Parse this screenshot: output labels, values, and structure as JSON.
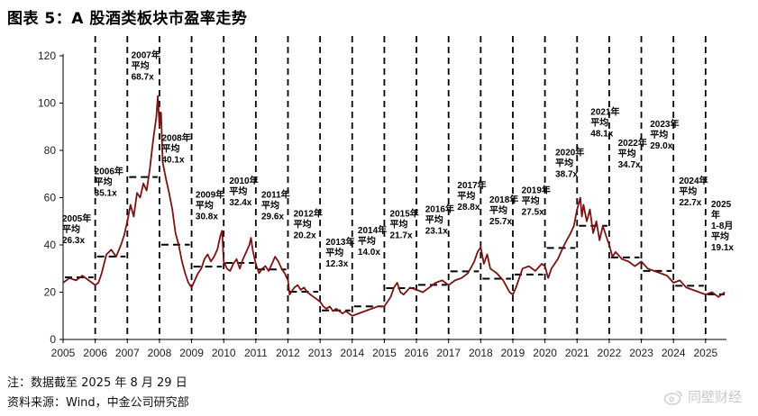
{
  "figure_title": "图表 5：A 股酒类板块市盈率走势",
  "footnote": "注：数据截至 2025 年 8 月 29 日",
  "source": "资料来源：Wind，中金公司研究部",
  "watermark": "同壁财经",
  "colors": {
    "line": "#7a1414",
    "dashed": "#000000",
    "axis": "#000000",
    "tick_text": "#222222"
  },
  "chart_data": {
    "type": "line",
    "ylim": [
      0,
      120
    ],
    "xlim": [
      2005,
      2025.65
    ],
    "yticks": [
      0,
      20,
      40,
      60,
      80,
      100,
      120
    ],
    "xticks": [
      "2005",
      "2006",
      "2007",
      "2008",
      "2009",
      "2010",
      "2011",
      "2012",
      "2013",
      "2014",
      "2015",
      "2016",
      "2017",
      "2018",
      "2019",
      "2020",
      "2021",
      "2022",
      "2023",
      "2024",
      "2025"
    ],
    "series": [
      {
        "points": [
          [
            2005.0,
            24
          ],
          [
            2005.2,
            26
          ],
          [
            2005.4,
            25
          ],
          [
            2005.6,
            27
          ],
          [
            2005.8,
            25
          ],
          [
            2006.0,
            23
          ],
          [
            2006.1,
            24
          ],
          [
            2006.2,
            28
          ],
          [
            2006.35,
            36
          ],
          [
            2006.5,
            38
          ],
          [
            2006.65,
            35
          ],
          [
            2006.8,
            40
          ],
          [
            2006.9,
            44
          ],
          [
            2007.0,
            50
          ],
          [
            2007.1,
            57
          ],
          [
            2007.2,
            52
          ],
          [
            2007.3,
            62
          ],
          [
            2007.4,
            60
          ],
          [
            2007.5,
            66
          ],
          [
            2007.6,
            63
          ],
          [
            2007.7,
            72
          ],
          [
            2007.8,
            84
          ],
          [
            2007.9,
            94
          ],
          [
            2007.95,
            103
          ],
          [
            2008.0,
            90
          ],
          [
            2008.05,
            96
          ],
          [
            2008.1,
            75
          ],
          [
            2008.2,
            68
          ],
          [
            2008.3,
            62
          ],
          [
            2008.4,
            55
          ],
          [
            2008.5,
            45
          ],
          [
            2008.6,
            40
          ],
          [
            2008.7,
            33
          ],
          [
            2008.8,
            28
          ],
          [
            2008.9,
            24
          ],
          [
            2009.0,
            22
          ],
          [
            2009.1,
            25
          ],
          [
            2009.2,
            28
          ],
          [
            2009.3,
            30
          ],
          [
            2009.4,
            34
          ],
          [
            2009.5,
            36
          ],
          [
            2009.6,
            33
          ],
          [
            2009.7,
            35
          ],
          [
            2009.8,
            38
          ],
          [
            2009.9,
            44
          ],
          [
            2009.95,
            46
          ],
          [
            2010.0,
            33
          ],
          [
            2010.1,
            30
          ],
          [
            2010.2,
            29
          ],
          [
            2010.3,
            32
          ],
          [
            2010.4,
            34
          ],
          [
            2010.5,
            30
          ],
          [
            2010.6,
            34
          ],
          [
            2010.7,
            37
          ],
          [
            2010.8,
            40
          ],
          [
            2010.85,
            43
          ],
          [
            2010.9,
            38
          ],
          [
            2011.0,
            32
          ],
          [
            2011.1,
            28
          ],
          [
            2011.2,
            30
          ],
          [
            2011.3,
            31
          ],
          [
            2011.4,
            29
          ],
          [
            2011.5,
            32
          ],
          [
            2011.6,
            35
          ],
          [
            2011.7,
            33
          ],
          [
            2011.8,
            30
          ],
          [
            2011.9,
            28
          ],
          [
            2012.0,
            25
          ],
          [
            2012.05,
            19
          ],
          [
            2012.1,
            20
          ],
          [
            2012.2,
            22
          ],
          [
            2012.3,
            23
          ],
          [
            2012.4,
            21
          ],
          [
            2012.5,
            22
          ],
          [
            2012.6,
            20
          ],
          [
            2012.7,
            19
          ],
          [
            2012.8,
            18
          ],
          [
            2012.9,
            17
          ],
          [
            2013.0,
            16
          ],
          [
            2013.1,
            14
          ],
          [
            2013.2,
            13
          ],
          [
            2013.3,
            14
          ],
          [
            2013.4,
            12
          ],
          [
            2013.5,
            13
          ],
          [
            2013.6,
            12
          ],
          [
            2013.7,
            11
          ],
          [
            2013.8,
            12
          ],
          [
            2013.9,
            11
          ],
          [
            2014.0,
            10
          ],
          [
            2014.2,
            11
          ],
          [
            2014.4,
            12
          ],
          [
            2014.6,
            13
          ],
          [
            2014.8,
            14
          ],
          [
            2015.0,
            14
          ],
          [
            2015.2,
            18
          ],
          [
            2015.3,
            22
          ],
          [
            2015.4,
            24
          ],
          [
            2015.5,
            20
          ],
          [
            2015.6,
            19
          ],
          [
            2015.8,
            22
          ],
          [
            2016.0,
            21
          ],
          [
            2016.2,
            20
          ],
          [
            2016.4,
            22
          ],
          [
            2016.6,
            24
          ],
          [
            2016.8,
            25
          ],
          [
            2017.0,
            23
          ],
          [
            2017.2,
            25
          ],
          [
            2017.4,
            26
          ],
          [
            2017.6,
            28
          ],
          [
            2017.8,
            33
          ],
          [
            2017.9,
            37
          ],
          [
            2018.0,
            39
          ],
          [
            2018.1,
            32
          ],
          [
            2018.2,
            36
          ],
          [
            2018.3,
            30
          ],
          [
            2018.5,
            28
          ],
          [
            2018.7,
            25
          ],
          [
            2018.9,
            20
          ],
          [
            2019.0,
            19
          ],
          [
            2019.1,
            22
          ],
          [
            2019.2,
            26
          ],
          [
            2019.3,
            30
          ],
          [
            2019.5,
            31
          ],
          [
            2019.7,
            29
          ],
          [
            2019.9,
            32
          ],
          [
            2020.0,
            31
          ],
          [
            2020.1,
            26
          ],
          [
            2020.2,
            30
          ],
          [
            2020.4,
            34
          ],
          [
            2020.6,
            40
          ],
          [
            2020.8,
            45
          ],
          [
            2020.9,
            48
          ],
          [
            2021.0,
            55
          ],
          [
            2021.1,
            60
          ],
          [
            2021.15,
            52
          ],
          [
            2021.2,
            57
          ],
          [
            2021.3,
            50
          ],
          [
            2021.4,
            55
          ],
          [
            2021.5,
            45
          ],
          [
            2021.6,
            50
          ],
          [
            2021.7,
            42
          ],
          [
            2021.8,
            48
          ],
          [
            2021.9,
            44
          ],
          [
            2022.0,
            40
          ],
          [
            2022.1,
            35
          ],
          [
            2022.2,
            37
          ],
          [
            2022.4,
            34
          ],
          [
            2022.6,
            33
          ],
          [
            2022.8,
            31
          ],
          [
            2023.0,
            33
          ],
          [
            2023.2,
            30
          ],
          [
            2023.4,
            29
          ],
          [
            2023.6,
            28
          ],
          [
            2023.8,
            27
          ],
          [
            2024.0,
            24
          ],
          [
            2024.2,
            25
          ],
          [
            2024.4,
            22
          ],
          [
            2024.6,
            21
          ],
          [
            2024.8,
            20
          ],
          [
            2025.0,
            19
          ],
          [
            2025.2,
            20
          ],
          [
            2025.4,
            18
          ],
          [
            2025.6,
            20
          ]
        ]
      }
    ],
    "period_averages": [
      {
        "year": "2005",
        "label": "2005年\n平均\n26.3x",
        "avg": 26.3,
        "x0": 2005,
        "x1": 2006
      },
      {
        "year": "2006",
        "label": "2006年\n平均\n35.1x",
        "avg": 35.1,
        "x0": 2006,
        "x1": 2007
      },
      {
        "year": "2007",
        "label": "2007年\n平均\n68.7x",
        "avg": 68.7,
        "x0": 2007,
        "x1": 2008
      },
      {
        "year": "2008",
        "label": "2008年\n平均\n40.1x",
        "avg": 40.1,
        "x0": 2008,
        "x1": 2009
      },
      {
        "year": "2009",
        "label": "2009年\n平均\n30.8x",
        "avg": 30.8,
        "x0": 2009,
        "x1": 2010
      },
      {
        "year": "2010",
        "label": "2010年\n平均\n32.4x",
        "avg": 32.4,
        "x0": 2010,
        "x1": 2011
      },
      {
        "year": "2011",
        "label": "2011年\n平均\n29.6x",
        "avg": 29.6,
        "x0": 2011,
        "x1": 2012
      },
      {
        "year": "2012",
        "label": "2012年\n平均\n20.2x",
        "avg": 20.2,
        "x0": 2012,
        "x1": 2013
      },
      {
        "year": "2013",
        "label": "2013年\n平均\n12.3x",
        "avg": 12.3,
        "x0": 2013,
        "x1": 2014
      },
      {
        "year": "2014",
        "label": "2014年\n平均\n14.0x",
        "avg": 14.0,
        "x0": 2014,
        "x1": 2015
      },
      {
        "year": "2015",
        "label": "2015年\n平均\n21.7x",
        "avg": 21.7,
        "x0": 2015,
        "x1": 2016
      },
      {
        "year": "2016",
        "label": "2016年\n平均\n23.1x",
        "avg": 23.1,
        "x0": 2016,
        "x1": 2017
      },
      {
        "year": "2017",
        "label": "2017年\n平均\n28.8x",
        "avg": 28.8,
        "x0": 2017,
        "x1": 2018
      },
      {
        "year": "2018",
        "label": "2018年\n平均\n25.7x",
        "avg": 25.7,
        "x0": 2018,
        "x1": 2019
      },
      {
        "year": "2019",
        "label": "2019年\n平均\n27.5x",
        "avg": 27.5,
        "x0": 2019,
        "x1": 2020
      },
      {
        "year": "2020",
        "label": "2020年\n平均\n38.7x",
        "avg": 38.7,
        "x0": 2020,
        "x1": 2021
      },
      {
        "year": "2021",
        "label": "2021年\n平均\n48.1x",
        "avg": 48.1,
        "x0": 2021,
        "x1": 2022
      },
      {
        "year": "2022",
        "label": "2022年\n平均\n34.7x",
        "avg": 34.7,
        "x0": 2022,
        "x1": 2023
      },
      {
        "year": "2023",
        "label": "2023年\n平均\n29.0x",
        "avg": 29.0,
        "x0": 2023,
        "x1": 2024
      },
      {
        "year": "2024",
        "label": "2024年\n平均\n22.7x",
        "avg": 22.7,
        "x0": 2024,
        "x1": 2025
      },
      {
        "year": "2025",
        "label": "2025\n年\n1-8月\n平均\n19.1x",
        "avg": 19.1,
        "x0": 2025,
        "x1": 2025.65
      }
    ]
  }
}
